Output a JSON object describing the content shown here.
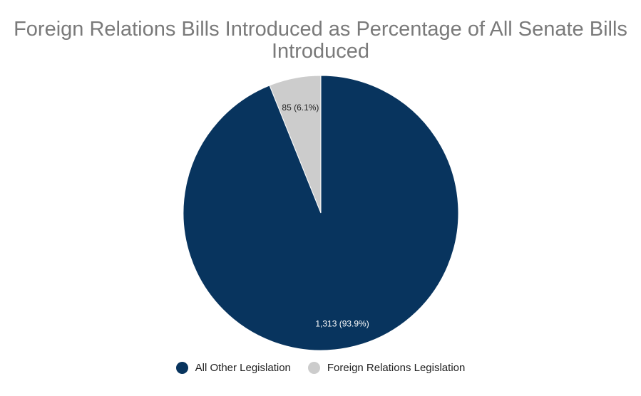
{
  "chart_data": {
    "type": "pie",
    "title": "Foreign Relations Bills Introduced as Percentage of All Senate Bills Introduced",
    "slices": [
      {
        "label": "All Other Legislation",
        "value": 1313,
        "percent": 93.9,
        "display": "1,313 (93.9%)",
        "color": "#08345e",
        "label_color": "#ffffff"
      },
      {
        "label": "Foreign Relations Legislation",
        "value": 85,
        "percent": 6.1,
        "display": "85 (6.1%)",
        "color": "#cccccc",
        "label_color": "#222222"
      }
    ],
    "legend_position": "bottom"
  }
}
